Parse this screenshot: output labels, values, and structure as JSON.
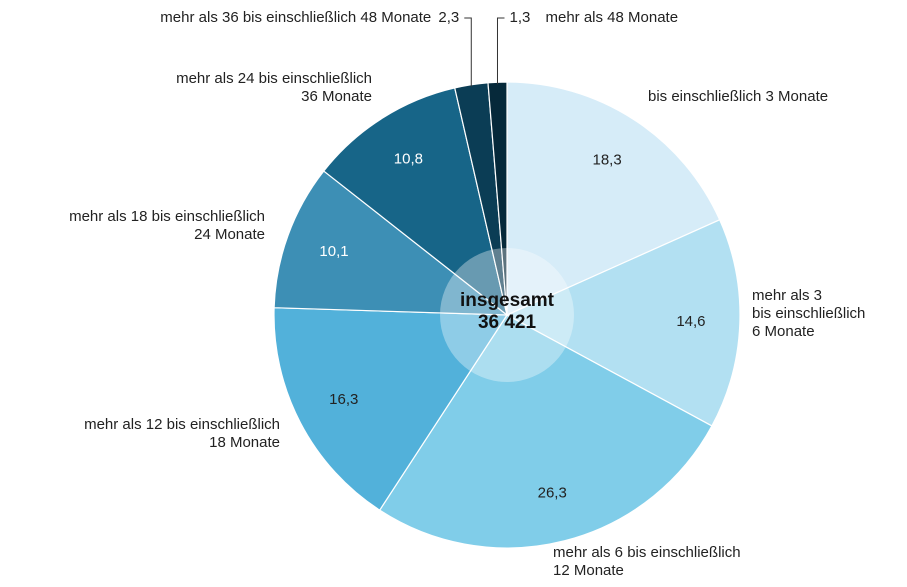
{
  "chart_data": {
    "type": "pie",
    "categories": [
      "bis einschließlich 3 Monate",
      "mehr als 3\nbis einschließlich\n6 Monate",
      "mehr als 6 bis einschließlich\n12 Monate",
      "mehr als 12 bis einschließlich\n18 Monate",
      "mehr als 18 bis einschließlich\n24 Monate",
      "mehr als 24 bis einschließlich\n36 Monate",
      "mehr als 36 bis einschließlich 48 Monate",
      "mehr als 48 Monate"
    ],
    "values": [
      18.3,
      14.6,
      26.3,
      16.3,
      10.1,
      10.8,
      2.3,
      1.3
    ],
    "value_labels": [
      "18,3",
      "14,6",
      "26,3",
      "16,3",
      "10,1",
      "10,8",
      "2,3",
      "1,3"
    ],
    "colors": [
      "#d6ecf8",
      "#b2e0f2",
      "#80cde9",
      "#52b1da",
      "#3d8fb5",
      "#176588",
      "#0b3d55",
      "#06293a"
    ],
    "center_label": [
      "insgesamt",
      "36 421"
    ]
  }
}
